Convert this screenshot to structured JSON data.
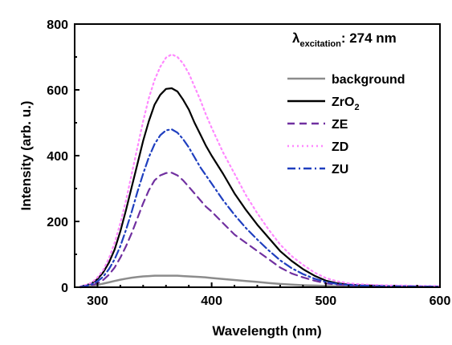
{
  "chart_data": {
    "type": "line",
    "xlabel": "Wavelength (nm)",
    "ylabel": "Intensity (arb. u.)",
    "xlim": [
      280,
      600
    ],
    "ylim": [
      0,
      800
    ],
    "xticks": [
      300,
      400,
      500,
      600
    ],
    "yticks": [
      0,
      200,
      400,
      600,
      800
    ],
    "annotation": {
      "symbol": "λ",
      "subscript": "excitation",
      "text": ": 274 nm"
    },
    "legend_position": "top-right",
    "x": [
      285,
      290,
      295,
      300,
      305,
      310,
      315,
      320,
      325,
      330,
      335,
      340,
      345,
      350,
      355,
      360,
      365,
      370,
      375,
      380,
      385,
      390,
      395,
      400,
      410,
      420,
      430,
      440,
      450,
      460,
      470,
      480,
      490,
      500,
      510,
      520,
      530,
      540,
      550,
      560,
      570,
      580,
      590,
      600
    ],
    "series": [
      {
        "name": "background",
        "color": "#8c8c8c",
        "dash": "solid",
        "values": [
          0,
          2,
          4,
          7,
          11,
          15,
          19,
          23,
          26,
          29,
          31,
          33,
          34,
          35,
          35,
          35,
          35,
          35,
          34,
          33,
          32,
          31,
          30,
          28,
          25,
          22,
          19,
          16,
          13,
          10,
          8,
          6,
          5,
          4,
          3,
          2,
          2,
          2,
          1,
          1,
          1,
          1,
          1,
          1
        ]
      },
      {
        "name": "ZrO",
        "name_sub": "2",
        "color": "#000000",
        "dash": "solid",
        "values": [
          2,
          6,
          12,
          25,
          45,
          75,
          115,
          170,
          235,
          305,
          375,
          445,
          505,
          555,
          585,
          603,
          605,
          595,
          570,
          540,
          500,
          465,
          430,
          400,
          345,
          285,
          235,
          190,
          150,
          110,
          80,
          55,
          35,
          20,
          12,
          8,
          6,
          5,
          4,
          3,
          3,
          3,
          2,
          2
        ]
      },
      {
        "name": "ZE",
        "color": "#7030a0",
        "dash": "dashed",
        "values": [
          1,
          3,
          6,
          12,
          22,
          38,
          60,
          90,
          125,
          165,
          210,
          255,
          295,
          325,
          340,
          347,
          348,
          340,
          325,
          305,
          285,
          265,
          245,
          230,
          195,
          160,
          135,
          110,
          85,
          60,
          42,
          30,
          20,
          12,
          8,
          6,
          5,
          4,
          3,
          3,
          3,
          2,
          2,
          2
        ]
      },
      {
        "name": "ZD",
        "color": "#ff88ff",
        "dash": "dotted",
        "values": [
          2,
          7,
          14,
          30,
          52,
          88,
          135,
          195,
          265,
          345,
          425,
          505,
          575,
          630,
          670,
          698,
          708,
          700,
          680,
          650,
          610,
          570,
          525,
          485,
          410,
          345,
          280,
          225,
          175,
          130,
          95,
          68,
          45,
          28,
          18,
          12,
          9,
          7,
          6,
          5,
          5,
          4,
          4,
          4
        ]
      },
      {
        "name": "ZU",
        "color": "#1f3fbf",
        "dash": "dashdot",
        "values": [
          1,
          4,
          9,
          18,
          32,
          55,
          85,
          125,
          175,
          230,
          290,
          345,
          395,
          435,
          462,
          477,
          480,
          470,
          450,
          425,
          395,
          365,
          340,
          315,
          265,
          220,
          180,
          145,
          112,
          82,
          58,
          40,
          26,
          16,
          10,
          7,
          5,
          4,
          3,
          3,
          3,
          2,
          2,
          2
        ]
      }
    ]
  }
}
